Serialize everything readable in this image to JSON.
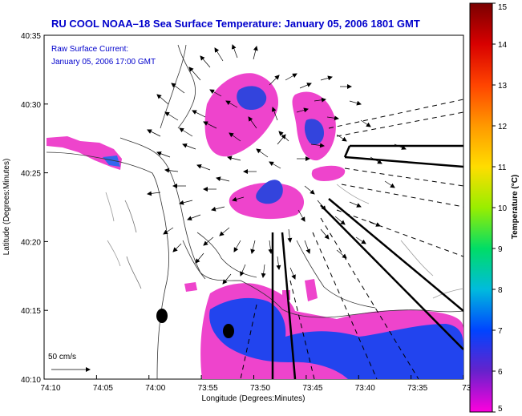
{
  "title": "RU COOL  NOAA–18  Sea Surface Temperature:  January 05, 2006 1801 GMT",
  "current_label": {
    "line1": "Raw Surface Current:",
    "line2": "January 05, 2006 17:00 GMT"
  },
  "scale_label": "50 cm/s",
  "axes": {
    "xlabel": "Longitude (Degrees:Minutes)",
    "ylabel": "Latitude (Degrees:Minutes)",
    "x_ticks": [
      "74:10",
      "74:05",
      "74:00",
      "73:55",
      "73:50",
      "73:45",
      "73:40",
      "73:35",
      "73:3"
    ],
    "y_ticks": [
      "40:35",
      "40:30",
      "40:25",
      "40:20",
      "40:15",
      "40:10"
    ]
  },
  "colorbar": {
    "label": "Temperature (°C)",
    "ticks": [
      "15",
      "14",
      "13",
      "12",
      "11",
      "10",
      "9",
      "8",
      "7",
      "6",
      "5"
    ]
  },
  "colors": {
    "title_blue": "#0000cc",
    "warm_patch_magenta": "#ee44cc",
    "cold_patch_blue": "#2244ee"
  }
}
